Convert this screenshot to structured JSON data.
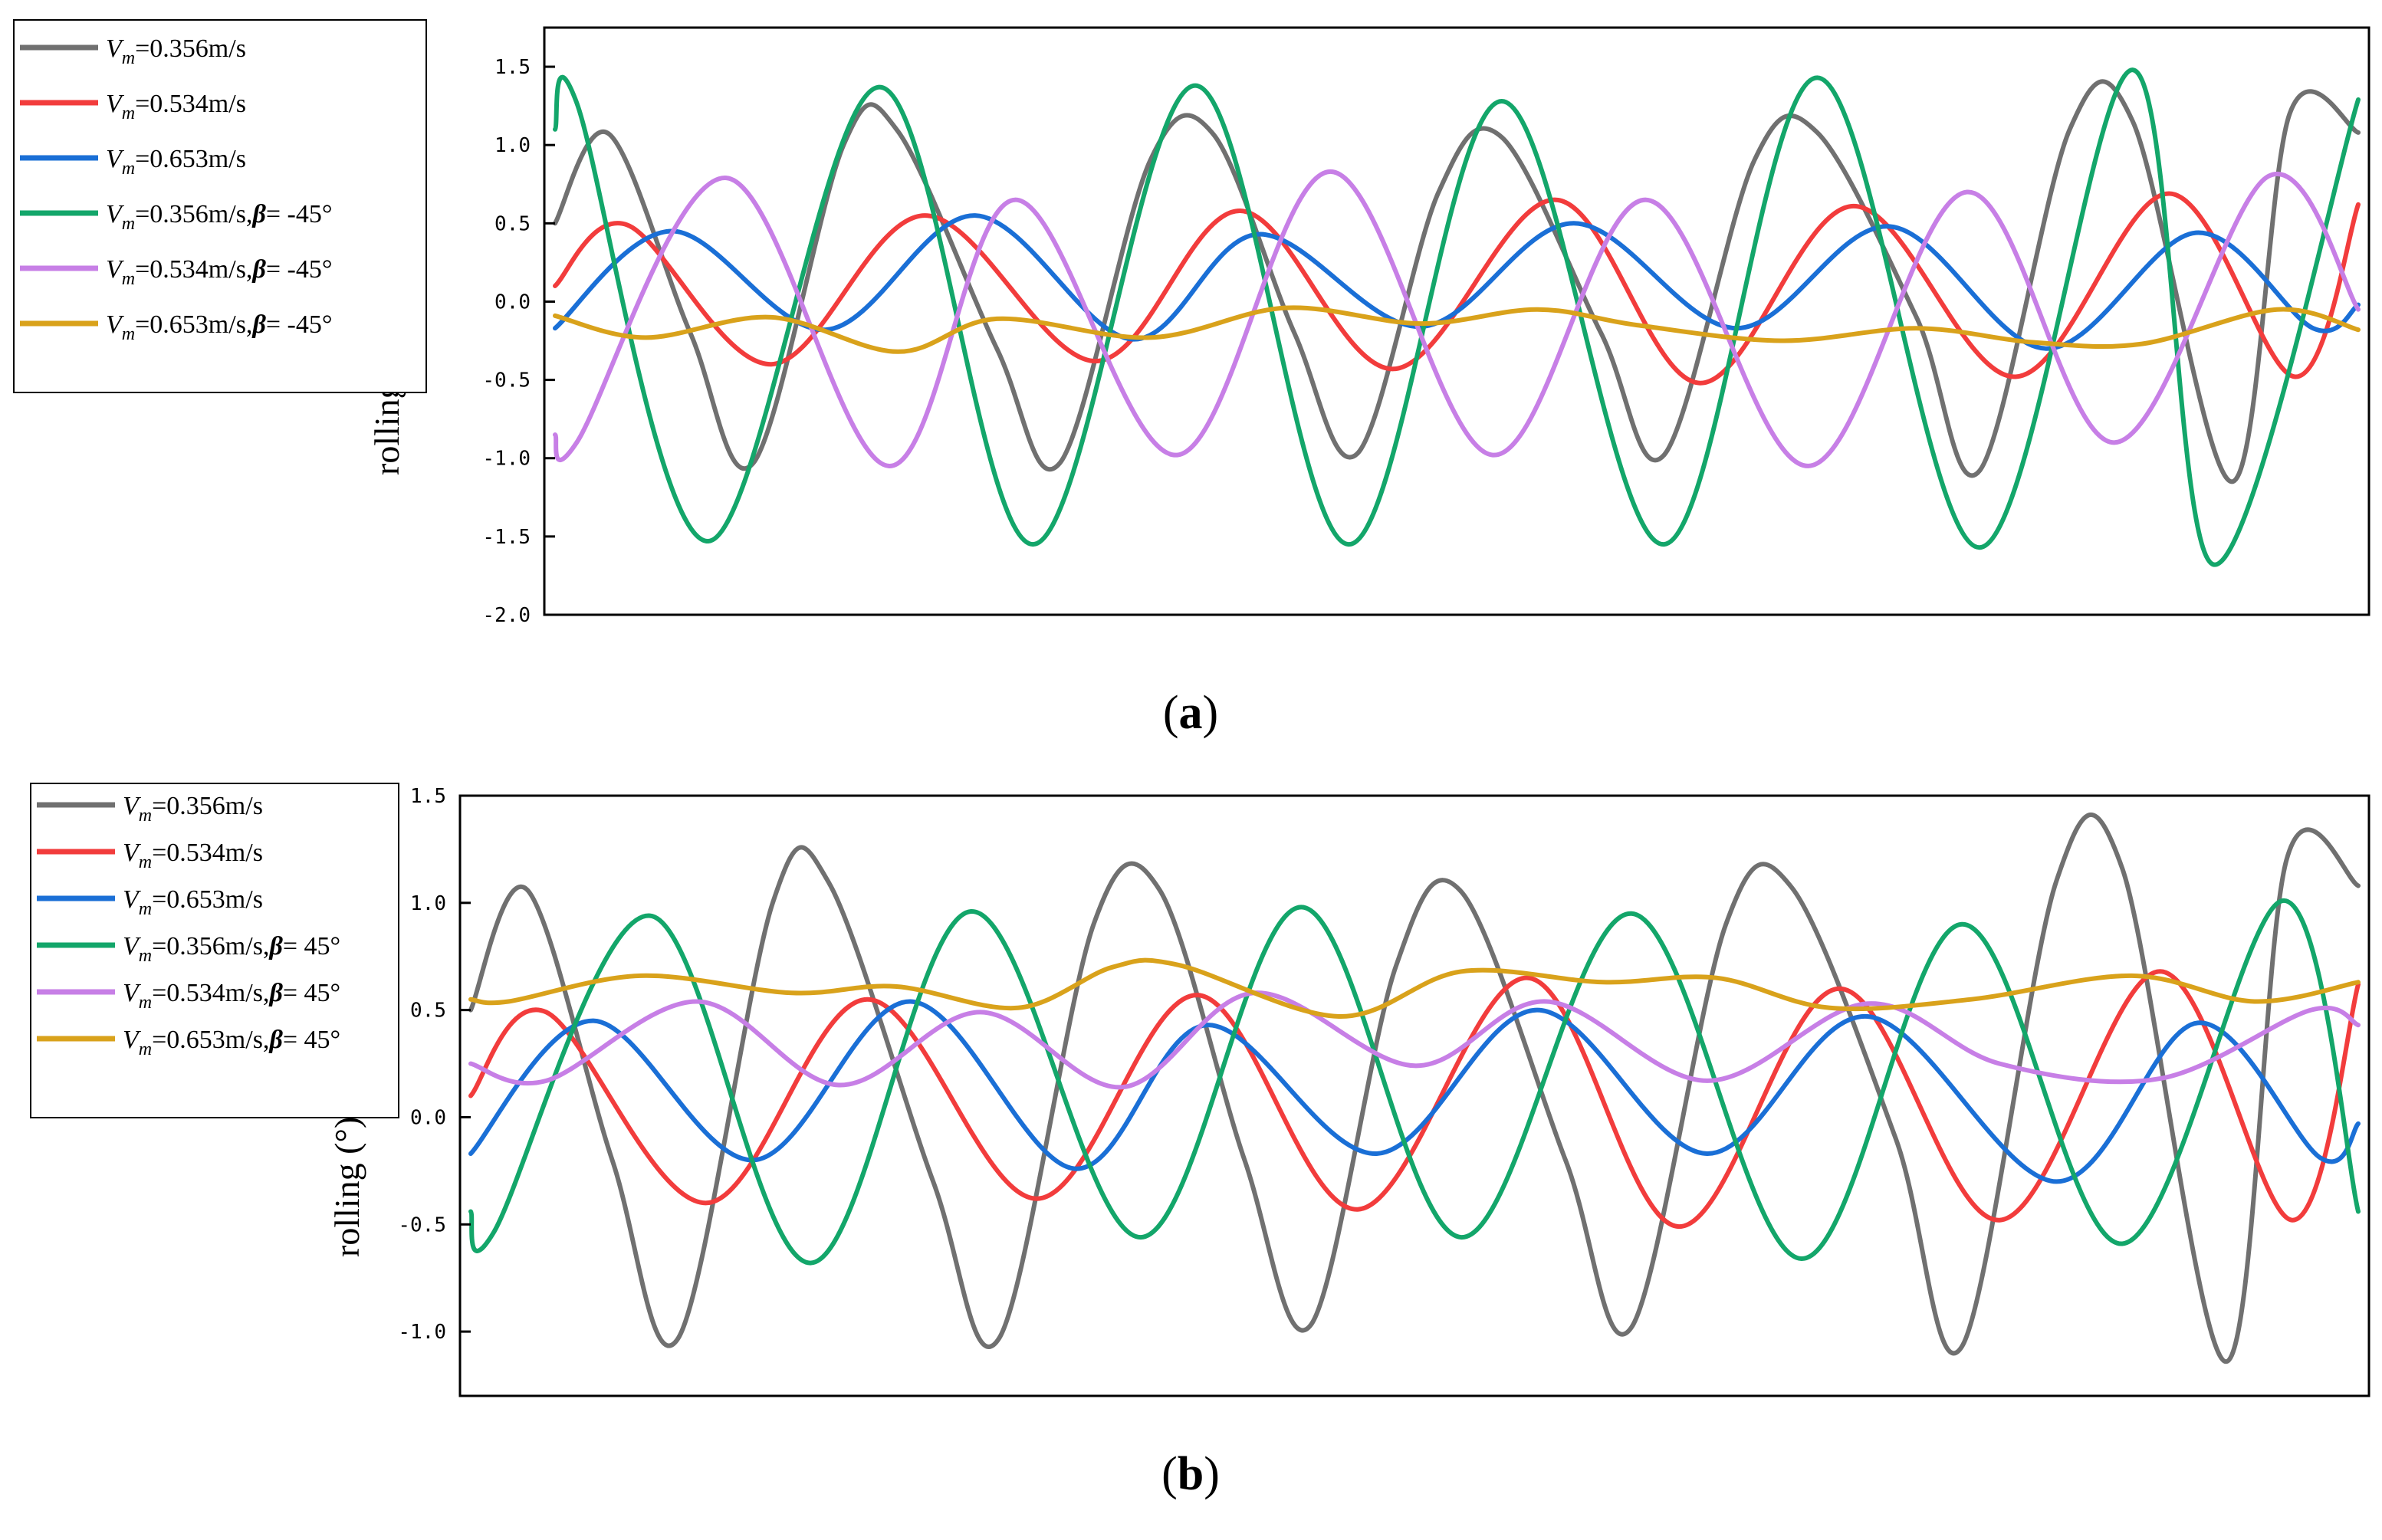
{
  "colors": {
    "gray": "#707070",
    "red": "#f23c3c",
    "blue": "#1a6fd6",
    "green": "#13a66a",
    "violet": "#c77fe6",
    "gold": "#d9a21b"
  },
  "chart_data": [
    {
      "type": "line",
      "panel_label": "a",
      "ylabel": "rolling (°)",
      "yticks": [
        "1.5",
        "1.0",
        "0.5",
        "0.0",
        "-0.5",
        "-1.0",
        "-1.5",
        "-2.0"
      ],
      "ytick_values": [
        1.5,
        1.0,
        0.5,
        0.0,
        -0.5,
        -1.0,
        -1.5,
        -2.0
      ],
      "ylim": [
        -2.0,
        1.75
      ],
      "xlim": [
        0,
        1
      ],
      "grid": false,
      "legend_placement": "outside-left",
      "series": [
        {
          "name": "V_m=0.356m/s",
          "vm": "0.356m/s",
          "beta": "",
          "color": "gray",
          "x": [
            0.0,
            0.03,
            0.075,
            0.11,
            0.16,
            0.19,
            0.245,
            0.28,
            0.33,
            0.365,
            0.41,
            0.445,
            0.49,
            0.525,
            0.58,
            0.615,
            0.665,
            0.7,
            0.755,
            0.79,
            0.84,
            0.875,
            0.93,
            0.962,
            1.0
          ],
          "y": [
            0.5,
            1.07,
            -0.2,
            -1.03,
            1.0,
            1.09,
            -0.3,
            -1.03,
            0.9,
            1.07,
            -0.2,
            -0.97,
            0.7,
            1.05,
            -0.2,
            -0.98,
            0.9,
            1.08,
            -0.1,
            -1.08,
            1.1,
            1.15,
            -1.15,
            1.2,
            1.08
          ]
        },
        {
          "name": "V_m=0.534m/s",
          "vm": "0.534m/s",
          "beta": "",
          "color": "red",
          "x": [
            0.0,
            0.04,
            0.12,
            0.205,
            0.3,
            0.38,
            0.465,
            0.555,
            0.635,
            0.72,
            0.81,
            0.895,
            0.965,
            1.0
          ],
          "y": [
            0.1,
            0.49,
            -0.4,
            0.55,
            -0.38,
            0.58,
            -0.43,
            0.65,
            -0.52,
            0.61,
            -0.48,
            0.69,
            -0.48,
            0.62
          ]
        },
        {
          "name": "V_m=0.653m/s",
          "vm": "0.653m/s",
          "beta": "",
          "color": "blue",
          "x": [
            0.0,
            0.065,
            0.15,
            0.233,
            0.32,
            0.39,
            0.48,
            0.565,
            0.655,
            0.74,
            0.827,
            0.91,
            0.975,
            1.0
          ],
          "y": [
            -0.17,
            0.45,
            -0.18,
            0.55,
            -0.24,
            0.43,
            -0.16,
            0.5,
            -0.17,
            0.48,
            -0.3,
            0.44,
            -0.17,
            -0.02
          ]
        },
        {
          "name": "V_m=0.356m/s,β= -45°",
          "vm": "0.356m/s,",
          "beta": "= -45°",
          "color": "green",
          "x": [
            0.0,
            0.012,
            0.085,
            0.18,
            0.265,
            0.355,
            0.44,
            0.525,
            0.615,
            0.7,
            0.79,
            0.875,
            0.92,
            1.0
          ],
          "y": [
            1.1,
            1.27,
            -1.53,
            1.37,
            -1.55,
            1.38,
            -1.55,
            1.28,
            -1.55,
            1.43,
            -1.57,
            1.48,
            -1.68,
            1.29
          ]
        },
        {
          "name": "V_m=0.534m/s,β= -45°",
          "vm": "0.534m/s,",
          "beta": "= -45°",
          "color": "violet",
          "x": [
            0.0,
            0.012,
            0.095,
            0.185,
            0.255,
            0.345,
            0.43,
            0.52,
            0.605,
            0.695,
            0.783,
            0.865,
            0.95,
            1.0
          ],
          "y": [
            -0.85,
            -0.9,
            0.79,
            -1.05,
            0.65,
            -0.98,
            0.83,
            -0.98,
            0.65,
            -1.05,
            0.7,
            -0.9,
            0.8,
            -0.05
          ]
        },
        {
          "name": "V_m=0.653m/s,β= -45°",
          "vm": "0.653m/s,",
          "beta": "= -45°",
          "color": "gold",
          "x": [
            0.0,
            0.05,
            0.12,
            0.19,
            0.245,
            0.33,
            0.405,
            0.48,
            0.545,
            0.6,
            0.68,
            0.755,
            0.82,
            0.88,
            0.955,
            1.0
          ],
          "y": [
            -0.09,
            -0.23,
            -0.1,
            -0.32,
            -0.11,
            -0.23,
            -0.04,
            -0.14,
            -0.05,
            -0.15,
            -0.25,
            -0.17,
            -0.26,
            -0.27,
            -0.05,
            -0.18
          ]
        }
      ]
    },
    {
      "type": "line",
      "panel_label": "b",
      "ylabel": "rolling (°)",
      "yticks": [
        "1.5",
        "1.0",
        "0.5",
        "0.0",
        "-0.5",
        "-1.0"
      ],
      "ytick_values": [
        1.5,
        1.0,
        0.5,
        0.0,
        -0.5,
        -1.0
      ],
      "ylim": [
        -1.3,
        1.5
      ],
      "xlim": [
        0,
        1
      ],
      "grid": false,
      "legend_placement": "outside-left",
      "series": [
        {
          "name": "V_m=0.356m/s",
          "vm": "0.356m/s",
          "beta": "",
          "color": "gray",
          "x": [
            0.0,
            0.03,
            0.075,
            0.11,
            0.16,
            0.19,
            0.245,
            0.28,
            0.33,
            0.365,
            0.41,
            0.445,
            0.49,
            0.525,
            0.58,
            0.615,
            0.665,
            0.7,
            0.755,
            0.79,
            0.84,
            0.875,
            0.93,
            0.962,
            1.0
          ],
          "y": [
            0.5,
            1.06,
            -0.2,
            -1.03,
            1.0,
            1.09,
            -0.3,
            -1.03,
            0.9,
            1.06,
            -0.2,
            -0.97,
            0.7,
            1.05,
            -0.2,
            -0.98,
            0.9,
            1.07,
            -0.1,
            -1.07,
            1.1,
            1.16,
            -1.14,
            1.2,
            1.08
          ]
        },
        {
          "name": "V_m=0.534m/s",
          "vm": "0.534m/s",
          "beta": "",
          "color": "red",
          "x": [
            0.0,
            0.04,
            0.125,
            0.21,
            0.3,
            0.385,
            0.47,
            0.56,
            0.64,
            0.725,
            0.81,
            0.895,
            0.965,
            1.0
          ],
          "y": [
            0.1,
            0.49,
            -0.4,
            0.55,
            -0.38,
            0.57,
            -0.43,
            0.65,
            -0.51,
            0.6,
            -0.48,
            0.68,
            -0.48,
            0.62
          ]
        },
        {
          "name": "V_m=0.653m/s",
          "vm": "0.653m/s",
          "beta": "",
          "color": "blue",
          "x": [
            0.0,
            0.065,
            0.15,
            0.233,
            0.32,
            0.39,
            0.48,
            0.565,
            0.655,
            0.74,
            0.84,
            0.915,
            0.98,
            1.0
          ],
          "y": [
            -0.17,
            0.45,
            -0.2,
            0.54,
            -0.24,
            0.43,
            -0.17,
            0.5,
            -0.17,
            0.47,
            -0.3,
            0.44,
            -0.19,
            -0.03
          ]
        },
        {
          "name": "V_m=0.356m/s,β= 45°",
          "vm": "0.356m/s,",
          "beta": "= 45°",
          "color": "green",
          "x": [
            0.0,
            0.012,
            0.095,
            0.18,
            0.265,
            0.355,
            0.44,
            0.525,
            0.615,
            0.705,
            0.79,
            0.875,
            0.96,
            1.0
          ],
          "y": [
            -0.44,
            -0.54,
            0.94,
            -0.68,
            0.96,
            -0.56,
            0.98,
            -0.56,
            0.95,
            -0.66,
            0.9,
            -0.59,
            1.01,
            -0.44
          ]
        },
        {
          "name": "V_m=0.534m/s,β= 45°",
          "vm": "0.534m/s,",
          "beta": "= 45°",
          "color": "violet",
          "x": [
            0.0,
            0.04,
            0.12,
            0.195,
            0.27,
            0.345,
            0.415,
            0.5,
            0.57,
            0.655,
            0.74,
            0.81,
            0.895,
            0.975,
            1.0
          ],
          "y": [
            0.25,
            0.17,
            0.54,
            0.15,
            0.49,
            0.14,
            0.58,
            0.24,
            0.54,
            0.17,
            0.53,
            0.25,
            0.18,
            0.5,
            0.43
          ]
        },
        {
          "name": "V_m=0.653m/s,β= 45°",
          "vm": "0.653m/s,",
          "beta": "= 45°",
          "color": "gold",
          "x": [
            0.0,
            0.02,
            0.09,
            0.17,
            0.225,
            0.29,
            0.34,
            0.375,
            0.46,
            0.525,
            0.6,
            0.66,
            0.72,
            0.795,
            0.88,
            0.945,
            1.0
          ],
          "y": [
            0.55,
            0.54,
            0.66,
            0.58,
            0.61,
            0.51,
            0.7,
            0.71,
            0.47,
            0.68,
            0.63,
            0.65,
            0.51,
            0.55,
            0.66,
            0.54,
            0.63
          ]
        }
      ]
    }
  ]
}
